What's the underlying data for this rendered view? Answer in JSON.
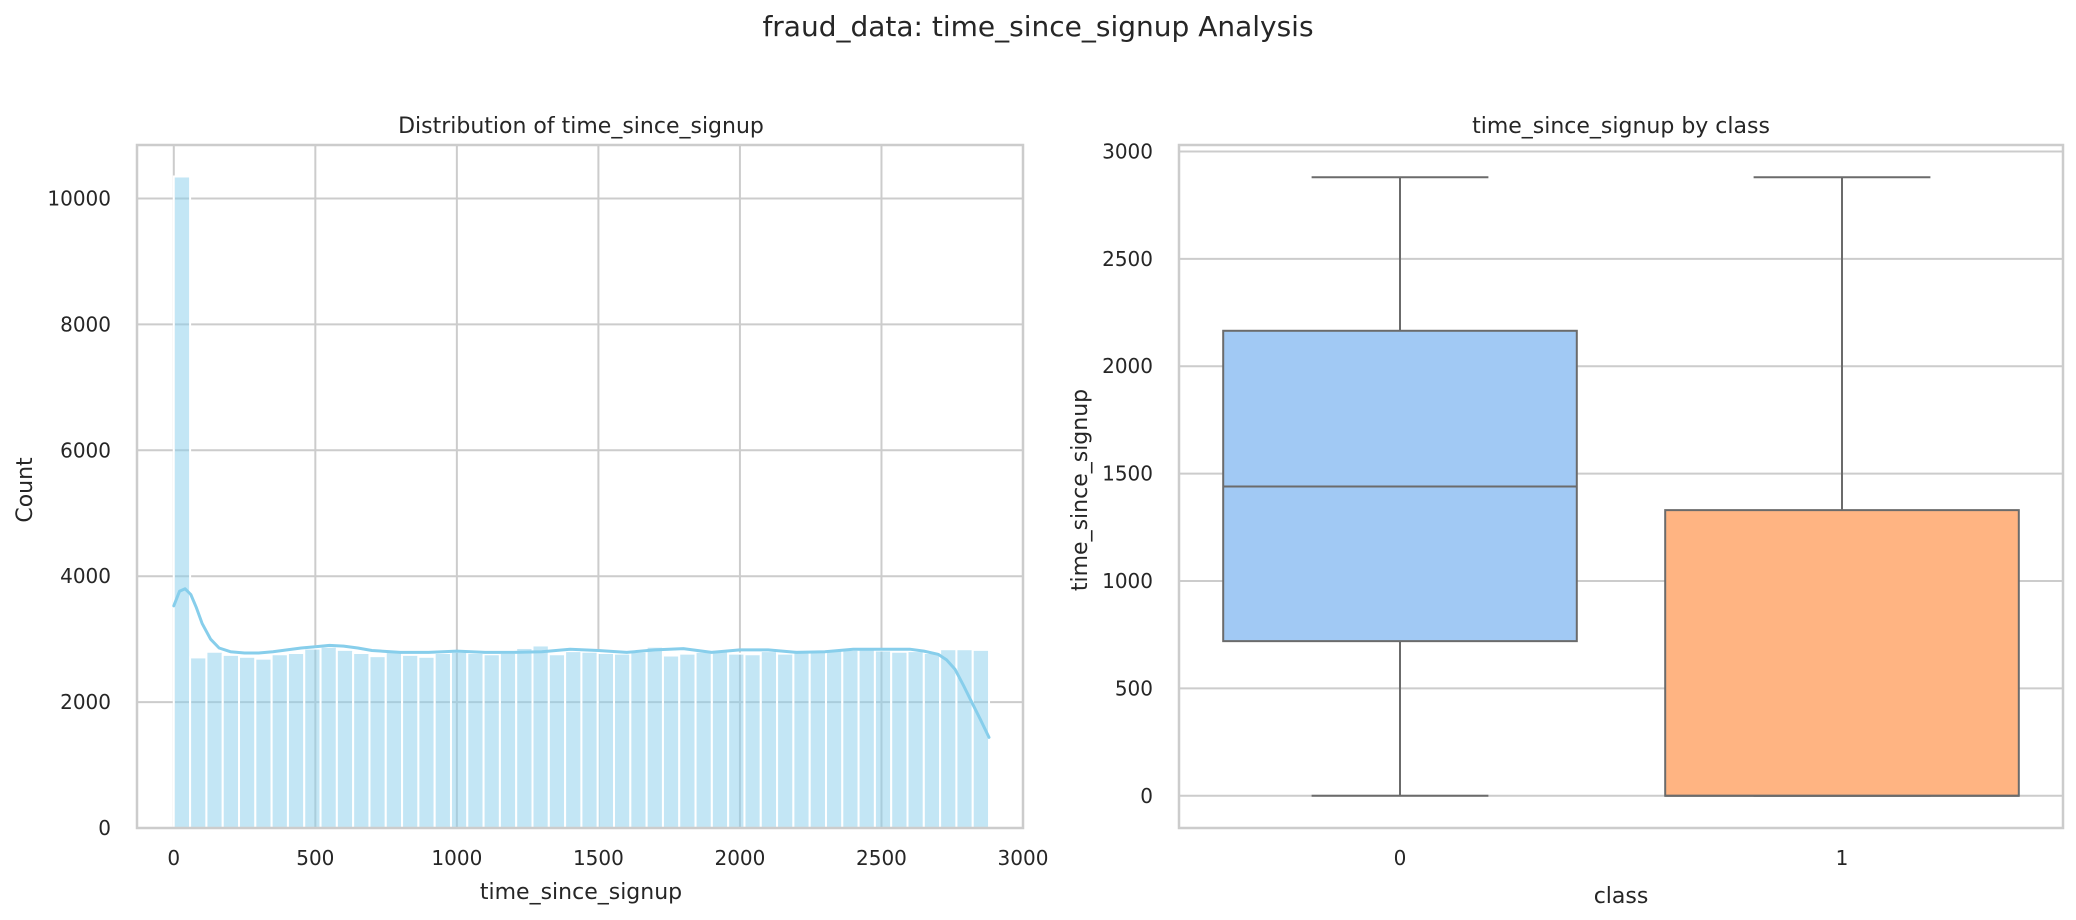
{
  "figure": {
    "suptitle": "fraud_data: time_since_signup Analysis"
  },
  "chart_data": [
    {
      "type": "bar",
      "subtype": "histogram",
      "title": "Distribution of time_since_signup",
      "xlabel": "time_since_signup",
      "ylabel": "Count",
      "xlim": [
        -130,
        3000
      ],
      "ylim": [
        0,
        10850
      ],
      "xticks": [
        0,
        500,
        1000,
        1500,
        2000,
        2500,
        3000
      ],
      "xtick_labels": [
        "0",
        "500",
        "1000",
        "1500",
        "2000",
        "2500",
        "3000"
      ],
      "yticks": [
        0,
        2000,
        4000,
        6000,
        8000,
        10000
      ],
      "ytick_labels": [
        "0",
        "2000",
        "4000",
        "6000",
        "8000",
        "10000"
      ],
      "grid": true,
      "bar_color": "#87ceeb",
      "kde_color": "#87ceeb",
      "bins": {
        "start": 0,
        "width": 57.6,
        "counts": [
          10350,
          2710,
          2800,
          2750,
          2720,
          2690,
          2760,
          2780,
          2850,
          2880,
          2830,
          2780,
          2730,
          2820,
          2750,
          2720,
          2780,
          2800,
          2780,
          2760,
          2780,
          2860,
          2900,
          2760,
          2810,
          2800,
          2780,
          2770,
          2800,
          2880,
          2740,
          2770,
          2800,
          2830,
          2770,
          2760,
          2810,
          2770,
          2830,
          2830,
          2830,
          2830,
          2850,
          2820,
          2800,
          2810,
          2780,
          2840,
          2840,
          2830
        ]
      },
      "kde": {
        "x": [
          0,
          20,
          40,
          60,
          80,
          100,
          130,
          160,
          200,
          250,
          300,
          350,
          400,
          450,
          500,
          550,
          600,
          650,
          700,
          800,
          900,
          1000,
          1100,
          1200,
          1300,
          1400,
          1500,
          1600,
          1700,
          1800,
          1900,
          2000,
          2100,
          2200,
          2300,
          2400,
          2500,
          2600,
          2650,
          2700,
          2730,
          2760,
          2790,
          2820,
          2850,
          2880
        ],
        "y": [
          3530,
          3760,
          3800,
          3710,
          3500,
          3250,
          3000,
          2860,
          2800,
          2780,
          2780,
          2800,
          2830,
          2860,
          2880,
          2900,
          2890,
          2860,
          2820,
          2790,
          2790,
          2810,
          2790,
          2790,
          2800,
          2840,
          2820,
          2790,
          2830,
          2850,
          2790,
          2830,
          2830,
          2790,
          2800,
          2840,
          2840,
          2840,
          2810,
          2760,
          2670,
          2520,
          2260,
          1990,
          1720,
          1440
        ]
      }
    },
    {
      "type": "box",
      "title": "time_since_signup by class",
      "xlabel": "class",
      "ylabel": "time_since_signup",
      "categories": [
        "0",
        "1"
      ],
      "ylim": [
        -150,
        3030
      ],
      "yticks": [
        0,
        500,
        1000,
        1500,
        2000,
        2500,
        3000
      ],
      "ytick_labels": [
        "0",
        "500",
        "1000",
        "1500",
        "2000",
        "2500",
        "3000"
      ],
      "grid": true,
      "boxes": [
        {
          "category": "0",
          "whisker_low": 0,
          "q1": 720,
          "median": 1440,
          "q3": 2165,
          "whisker_high": 2880,
          "color": "#a1c9f4"
        },
        {
          "category": "1",
          "whisker_low": 0,
          "q1": 0,
          "median": 0,
          "q3": 1330,
          "whisker_high": 2880,
          "color": "#ffb482"
        }
      ]
    }
  ]
}
